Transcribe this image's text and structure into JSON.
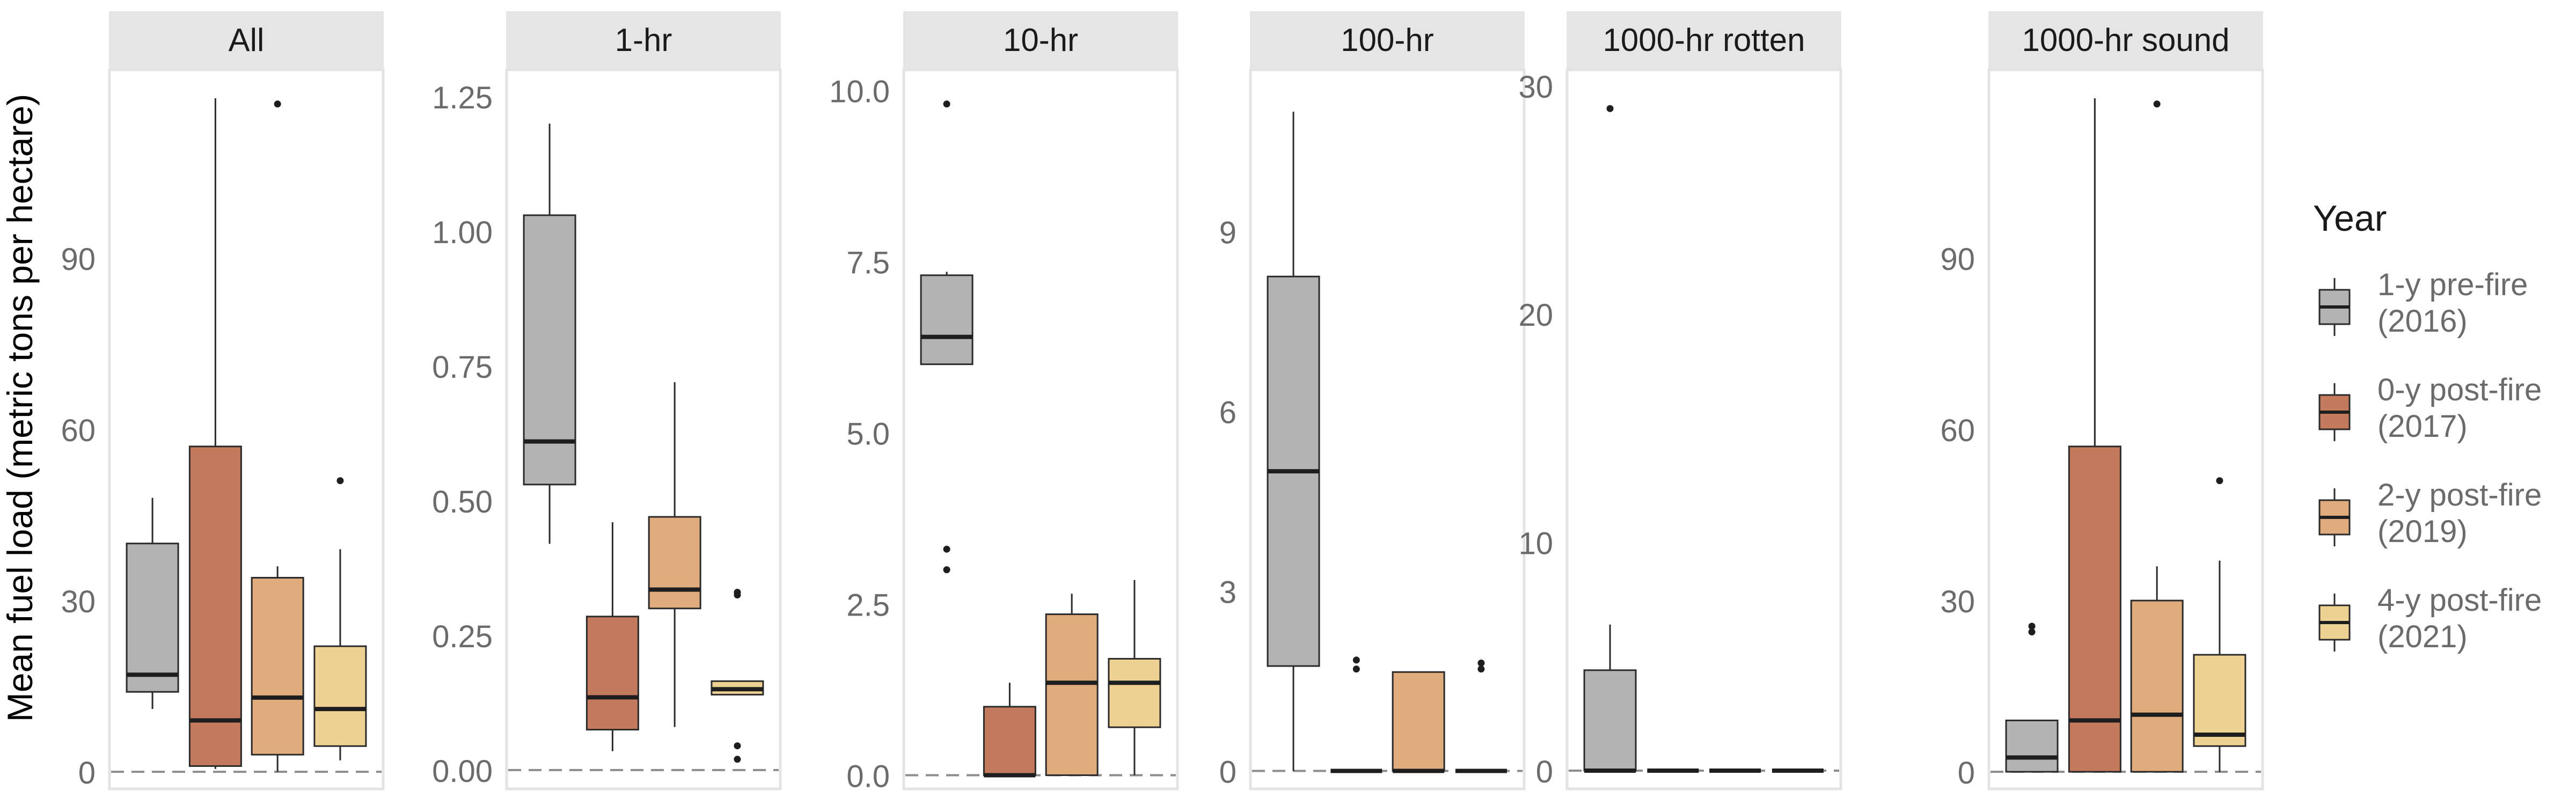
{
  "chart_data": {
    "type": "box",
    "ylabel": "Mean fuel load (metric tons per hectare)",
    "legend": {
      "title": "Year",
      "position": "right",
      "entries": [
        {
          "line1": "1-y pre-fire",
          "line2": "(2016)",
          "color": "#B3B3B3"
        },
        {
          "line1": "0-y post-fire",
          "line2": "(2017)",
          "color": "#C47A5C"
        },
        {
          "line1": "2-y post-fire",
          "line2": "(2019)",
          "color": "#E0AC7D"
        },
        {
          "line1": "4-y post-fire",
          "line2": "(2021)",
          "color": "#EDD294"
        }
      ]
    },
    "reference_line": {
      "y": 0,
      "style": "dashed"
    },
    "facets": [
      {
        "title": "All",
        "ylim": [
          -3,
          123
        ],
        "yticks": [
          0,
          30,
          60,
          90
        ],
        "ytick_labels": [
          "0",
          "30",
          "60",
          "90"
        ],
        "boxes": [
          {
            "min": 11,
            "q1": 14,
            "median": 17,
            "q3": 40,
            "max": 48,
            "outliers": []
          },
          {
            "min": 0.5,
            "q1": 1,
            "median": 9,
            "q3": 57,
            "max": 118,
            "outliers": []
          },
          {
            "min": 0,
            "q1": 3,
            "median": 13,
            "q3": 34,
            "max": 36,
            "outliers": [
              117
            ]
          },
          {
            "min": 2,
            "q1": 4.5,
            "median": 11,
            "q3": 22,
            "max": 39,
            "outliers": [
              51
            ]
          }
        ]
      },
      {
        "title": "1-hr",
        "ylim": [
          -0.035,
          1.3
        ],
        "yticks": [
          0,
          0.25,
          0.5,
          0.75,
          1.0,
          1.25
        ],
        "ytick_labels": [
          "0.00",
          "0.25",
          "0.50",
          "0.75",
          "1.00",
          "1.25"
        ],
        "boxes": [
          {
            "min": 0.42,
            "q1": 0.53,
            "median": 0.61,
            "q3": 1.03,
            "max": 1.2,
            "outliers": []
          },
          {
            "min": 0.035,
            "q1": 0.075,
            "median": 0.135,
            "q3": 0.285,
            "max": 0.46,
            "outliers": []
          },
          {
            "min": 0.08,
            "q1": 0.3,
            "median": 0.335,
            "q3": 0.47,
            "max": 0.72,
            "outliers": []
          },
          {
            "min": 0.14,
            "q1": 0.14,
            "median": 0.15,
            "q3": 0.165,
            "max": 0.165,
            "outliers": [
              0.33,
              0.325,
              0.045,
              0.02
            ]
          }
        ]
      },
      {
        "title": "10-hr",
        "ylim": [
          -0.2,
          10.3
        ],
        "yticks": [
          0,
          2.5,
          5.0,
          7.5,
          10.0
        ],
        "ytick_labels": [
          "0.0",
          "2.5",
          "5.0",
          "7.5",
          "10.0"
        ],
        "boxes": [
          {
            "min": 6.0,
            "q1": 6.0,
            "median": 6.4,
            "q3": 7.3,
            "max": 7.35,
            "outliers": [
              9.8,
              3.3,
              3.0
            ]
          },
          {
            "min": 0,
            "q1": 0,
            "median": 0,
            "q3": 1.0,
            "max": 1.35,
            "outliers": []
          },
          {
            "min": 0,
            "q1": 0,
            "median": 1.35,
            "q3": 2.35,
            "max": 2.65,
            "outliers": []
          },
          {
            "min": 0,
            "q1": 0.7,
            "median": 1.35,
            "q3": 1.7,
            "max": 2.85,
            "outliers": []
          }
        ]
      },
      {
        "title": "100-hr",
        "ylim": [
          -0.3,
          11.7
        ],
        "yticks": [
          0,
          3,
          6,
          9
        ],
        "ytick_labels": [
          "0",
          "3",
          "6",
          "9"
        ],
        "boxes": [
          {
            "min": 0,
            "q1": 1.75,
            "median": 5.0,
            "q3": 8.25,
            "max": 11.0,
            "outliers": []
          },
          {
            "min": 0,
            "q1": 0,
            "median": 0,
            "q3": 0,
            "max": 0,
            "outliers": [
              1.85,
              1.7
            ]
          },
          {
            "min": 0,
            "q1": 0,
            "median": 0,
            "q3": 1.65,
            "max": 1.65,
            "outliers": []
          },
          {
            "min": 0,
            "q1": 0,
            "median": 0,
            "q3": 0,
            "max": 0,
            "outliers": [
              1.8,
              1.7
            ]
          }
        ]
      },
      {
        "title": "1000-hr rotten",
        "ylim": [
          -0.8,
          30.7
        ],
        "yticks": [
          0,
          10,
          20,
          30
        ],
        "ytick_labels": [
          "0",
          "10",
          "20",
          "30"
        ],
        "boxes": [
          {
            "min": 0,
            "q1": 0,
            "median": 0,
            "q3": 4.4,
            "max": 6.4,
            "outliers": [
              29
            ]
          },
          {
            "min": 0,
            "q1": 0,
            "median": 0,
            "q3": 0,
            "max": 0,
            "outliers": []
          },
          {
            "min": 0,
            "q1": 0,
            "median": 0,
            "q3": 0,
            "max": 0,
            "outliers": []
          },
          {
            "min": 0,
            "q1": 0,
            "median": 0,
            "q3": 0,
            "max": 0,
            "outliers": []
          }
        ]
      },
      {
        "title": "1000-hr sound",
        "ylim": [
          -3,
          123
        ],
        "yticks": [
          0,
          30,
          60,
          90
        ],
        "ytick_labels": [
          "0",
          "30",
          "60",
          "90"
        ],
        "boxes": [
          {
            "min": 0,
            "q1": 0,
            "median": 2.5,
            "q3": 9,
            "max": 9,
            "outliers": [
              25.5,
              24.5
            ]
          },
          {
            "min": 0,
            "q1": 0,
            "median": 9,
            "q3": 57,
            "max": 118,
            "outliers": []
          },
          {
            "min": 0,
            "q1": 0,
            "median": 10,
            "q3": 30,
            "max": 36,
            "outliers": [
              117
            ]
          },
          {
            "min": 0,
            "q1": 4.5,
            "median": 6.5,
            "q3": 20.5,
            "max": 37,
            "outliers": [
              51
            ]
          }
        ]
      }
    ]
  }
}
